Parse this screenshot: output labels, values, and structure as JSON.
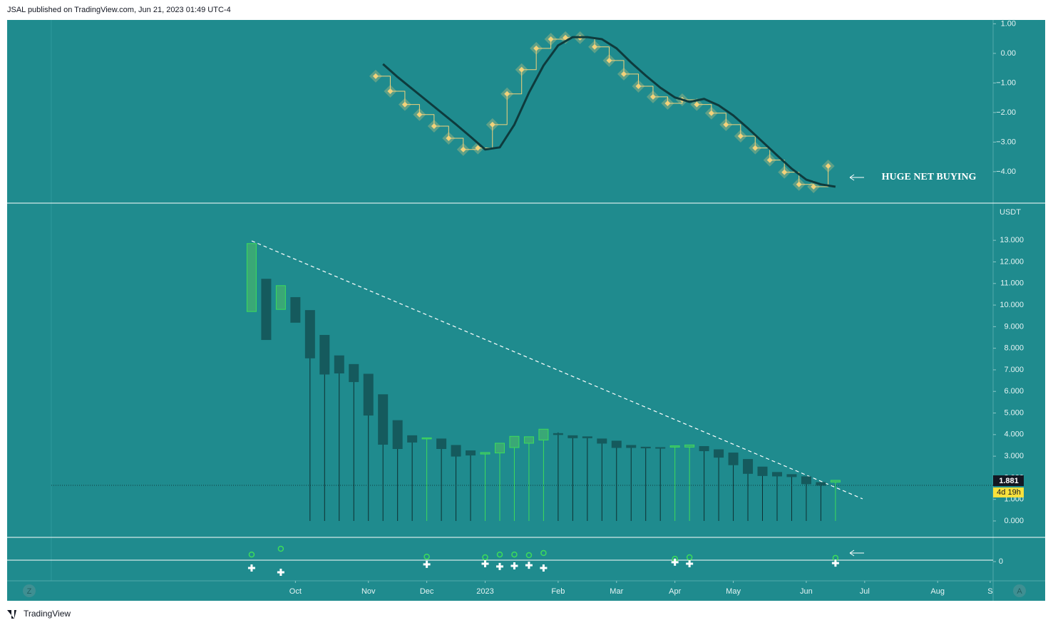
{
  "header": "JSAL published on TradingView.com, Jun 21, 2023 01:49 UTC-4",
  "footer": "TradingView",
  "buttons": [
    "Z",
    "A"
  ],
  "chart_data": [
    {
      "type": "line",
      "annotation": "HUGE NET BUYING",
      "xlim": [
        -16.75,
        50.8
      ],
      "ylim": [
        -5.04,
        1.13
      ],
      "yticks": [
        {
          "value": 1,
          "label": "1.00"
        },
        {
          "value": 0,
          "label": "0.00"
        },
        {
          "value": -1,
          "label": "−1.00"
        },
        {
          "value": -2,
          "label": "−2.00"
        },
        {
          "value": -3,
          "label": "−3.00"
        },
        {
          "value": -4,
          "label": "−4.00"
        }
      ],
      "series": [
        {
          "color": "#f3d27a",
          "step": true,
          "marker": "diamond",
          "x": [
            8.5,
            9.5,
            10.5,
            11.5,
            12.5,
            13.5,
            14.5,
            15.5,
            16.5,
            17.5,
            18.5,
            19.5,
            20.5,
            21.5,
            22.5,
            23.5,
            24.5,
            25.5,
            26.5,
            27.5,
            28.5,
            29.5,
            30.5,
            31.5,
            32.5,
            33.5,
            34.5,
            35.5,
            36.5,
            37.5,
            38.5,
            39.5
          ],
          "values": [
            -0.77,
            -1.28,
            -1.73,
            -2.07,
            -2.46,
            -2.87,
            -3.25,
            -3.2,
            -2.41,
            -1.37,
            -0.55,
            0.17,
            0.48,
            0.53,
            0.53,
            0.22,
            -0.24,
            -0.7,
            -1.11,
            -1.47,
            -1.69,
            -1.57,
            -1.73,
            -2.02,
            -2.41,
            -2.8,
            -3.2,
            -3.61,
            -4.02,
            -4.43,
            -4.51,
            -3.81
          ]
        },
        {
          "color": "#0e3b3d",
          "x": [
            9,
            10,
            11,
            12,
            13,
            14,
            15,
            16,
            17,
            18,
            19,
            20,
            21,
            22,
            23,
            24,
            25,
            26,
            27,
            28,
            29,
            30,
            31,
            32,
            33,
            34,
            35,
            36,
            37,
            38,
            39,
            40
          ],
          "values": [
            -0.36,
            -0.8,
            -1.2,
            -1.6,
            -2.0,
            -2.4,
            -2.82,
            -3.25,
            -3.18,
            -2.41,
            -1.33,
            -0.41,
            0.27,
            0.55,
            0.55,
            0.48,
            0.17,
            -0.31,
            -0.75,
            -1.16,
            -1.49,
            -1.64,
            -1.54,
            -1.76,
            -2.1,
            -2.53,
            -2.99,
            -3.45,
            -3.9,
            -4.27,
            -4.43,
            -4.51
          ]
        }
      ]
    },
    {
      "type": "candlestick",
      "unit": "USDT",
      "up_color": "#3ddc5a",
      "down_color": "#155a5d",
      "last_value": 1.881,
      "countdown": "4d 19h",
      "xlim": [
        -16.75,
        50.8
      ],
      "ylim": [
        -0.76,
        14.69
      ],
      "xticks": [
        {
          "value": 3,
          "label": "Oct"
        },
        {
          "value": 8,
          "label": "Nov"
        },
        {
          "value": 12,
          "label": "Dec"
        },
        {
          "value": 16,
          "label": "2023"
        },
        {
          "value": 21,
          "label": "Feb"
        },
        {
          "value": 25,
          "label": "Mar"
        },
        {
          "value": 29,
          "label": "Apr"
        },
        {
          "value": 33,
          "label": "May"
        },
        {
          "value": 38,
          "label": "Jun"
        },
        {
          "value": 42,
          "label": "Jul"
        },
        {
          "value": 47,
          "label": "Aug"
        },
        {
          "value": 50.6,
          "label": "S"
        }
      ],
      "yticks": [
        {
          "value": 0,
          "label": "0.000"
        },
        {
          "value": 1,
          "label": "1.000"
        },
        {
          "value": 2,
          "label": "2.000"
        },
        {
          "value": 3,
          "label": "3.000"
        },
        {
          "value": 4,
          "label": "4.000"
        },
        {
          "value": 5,
          "label": "5.000"
        },
        {
          "value": 6,
          "label": "6.000"
        },
        {
          "value": 7,
          "label": "7.000"
        },
        {
          "value": 8,
          "label": "8.000"
        },
        {
          "value": 9,
          "label": "9.000"
        },
        {
          "value": 10,
          "label": "10.000"
        },
        {
          "value": 11,
          "label": "11.000"
        },
        {
          "value": 12,
          "label": "12.000"
        },
        {
          "value": 13,
          "label": "13.000"
        }
      ],
      "x": [
        0,
        1,
        2,
        3,
        4,
        5,
        6,
        7,
        8,
        9,
        10,
        11,
        12,
        13,
        14,
        15,
        16,
        17,
        18,
        19,
        20,
        21,
        22,
        23,
        24,
        25,
        26,
        27,
        28,
        29,
        30,
        31,
        32,
        33,
        34,
        35,
        36,
        37,
        38,
        39,
        40
      ],
      "open": [
        9.7,
        11.2,
        9.8,
        10.35,
        9.75,
        8.6,
        7.65,
        7.25,
        6.8,
        5.85,
        4.65,
        3.95,
        3.8,
        3.8,
        3.5,
        3.25,
        3.1,
        3.15,
        3.4,
        3.6,
        3.75,
        4.05,
        3.95,
        3.9,
        3.8,
        3.7,
        3.5,
        3.42,
        3.4,
        3.42,
        3.42,
        3.45,
        3.3,
        3.15,
        2.85,
        2.5,
        2.25,
        2.15,
        2.05,
        1.78,
        1.8
      ],
      "high": [
        12.85,
        11.2,
        10.9,
        10.35,
        9.75,
        8.6,
        7.65,
        7.25,
        6.8,
        5.85,
        4.65,
        3.95,
        3.85,
        3.8,
        3.5,
        3.25,
        3.17,
        3.6,
        3.92,
        3.9,
        4.25,
        4.1,
        3.95,
        3.9,
        3.8,
        3.7,
        3.5,
        3.42,
        3.4,
        3.48,
        3.52,
        3.45,
        3.3,
        3.15,
        2.85,
        2.5,
        2.25,
        2.15,
        2.05,
        1.78,
        1.881
      ],
      "low": [
        9.7,
        8.4,
        9.8,
        9.2,
        0,
        0,
        0,
        0,
        0,
        0,
        0,
        0,
        0,
        0,
        0,
        0,
        0,
        0,
        0,
        0,
        0,
        0,
        0,
        0,
        0,
        0,
        0,
        0,
        0,
        0,
        0,
        0,
        0,
        0,
        0,
        0,
        0,
        0,
        0,
        0,
        0
      ],
      "close": [
        12.85,
        8.4,
        10.9,
        9.2,
        7.55,
        6.8,
        6.85,
        6.45,
        4.9,
        3.55,
        3.35,
        3.65,
        3.85,
        3.35,
        3.0,
        3.05,
        3.17,
        3.6,
        3.92,
        3.9,
        4.25,
        4.0,
        3.85,
        3.85,
        3.6,
        3.4,
        3.4,
        3.38,
        3.38,
        3.48,
        3.52,
        3.25,
        2.95,
        2.6,
        2.2,
        2.1,
        2.08,
        2.05,
        1.72,
        1.65,
        1.881
      ]
    },
    {
      "type": "scatter",
      "xlim": [
        -16.75,
        50.8
      ],
      "ylim": [
        -0.9,
        1.1
      ],
      "yticks": [
        0
      ],
      "series": [
        {
          "color": "#3ddc5a",
          "marker": "circle",
          "x": [
            0,
            2,
            12,
            16,
            17,
            18,
            19,
            20,
            29,
            30,
            40
          ],
          "values": [
            0.33,
            0.6,
            0.23,
            0.2,
            0.33,
            0.33,
            0.3,
            0.4,
            0.13,
            0.2,
            0.17
          ]
        },
        {
          "color": "#ffffff",
          "marker": "cross",
          "x": [
            0,
            2,
            12,
            16,
            17,
            18,
            19,
            20,
            29,
            30,
            40
          ],
          "values": [
            -0.3,
            -0.5,
            -0.13,
            -0.1,
            -0.23,
            -0.2,
            -0.17,
            -0.3,
            -0.03,
            -0.1,
            -0.07
          ]
        }
      ]
    }
  ]
}
